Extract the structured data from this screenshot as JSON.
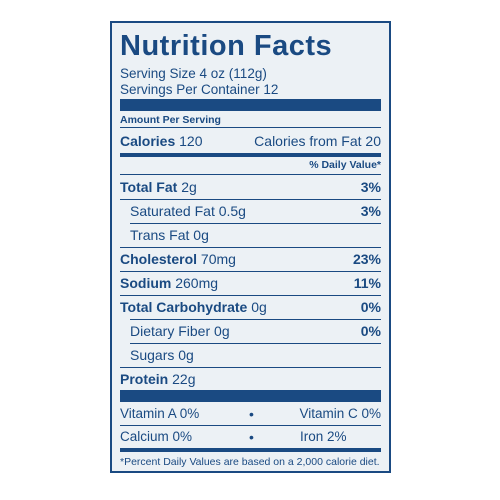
{
  "title": "Nutrition Facts",
  "serving_size": "Serving Size 4 oz (112g)",
  "servings_per_container": "Servings Per Container 12",
  "amount_per_serving": "Amount Per Serving",
  "calories": {
    "label": "Calories",
    "value": "120",
    "from_fat": "Calories from Fat 20"
  },
  "daily_value_header": "% Daily Value*",
  "nutrients": [
    {
      "label": "Total Fat",
      "amount": "2g",
      "dv": "3%"
    },
    {
      "label": "Saturated Fat",
      "amount": "0.5g",
      "dv": "3%"
    },
    {
      "label": "Trans Fat",
      "amount": "0g",
      "dv": ""
    },
    {
      "label": "Cholesterol",
      "amount": "70mg",
      "dv": "23%"
    },
    {
      "label": "Sodium",
      "amount": "260mg",
      "dv": "11%"
    },
    {
      "label": "Total Carbohydrate",
      "amount": "0g",
      "dv": "0%"
    },
    {
      "label": "Dietary Fiber",
      "amount": "0g",
      "dv": "0%"
    },
    {
      "label": "Sugars",
      "amount": "0g",
      "dv": ""
    },
    {
      "label": "Protein",
      "amount": "22g",
      "dv": ""
    }
  ],
  "vitamins": [
    {
      "left": "Vitamin A 0%",
      "right": "Vitamin C 0%"
    },
    {
      "left": "Calcium 0%",
      "right": "Iron 2%"
    }
  ],
  "bullet": "•",
  "footnote": "*Percent Daily Values are based on a 2,000 calorie diet.",
  "colors": {
    "ink": "#1a4a82",
    "background": "#ecf1f5"
  }
}
